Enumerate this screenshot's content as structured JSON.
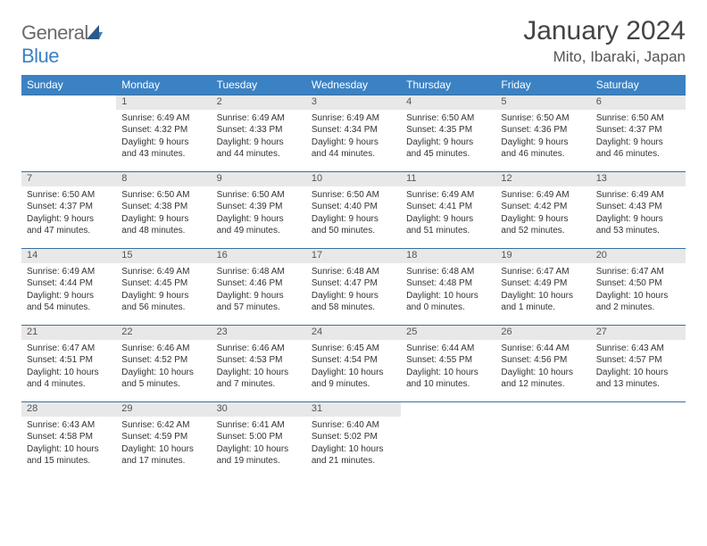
{
  "logo": {
    "text1": "General",
    "text2": "Blue"
  },
  "header": {
    "month": "January 2024",
    "location": "Mito, Ibaraki, Japan"
  },
  "colors": {
    "header_bg": "#3b82c4",
    "daynum_bg": "#e8e8e8",
    "border": "#3b6ea0",
    "text": "#333333",
    "logo_gray": "#6b6b6b",
    "logo_blue": "#3b82c4"
  },
  "dayHeaders": [
    "Sunday",
    "Monday",
    "Tuesday",
    "Wednesday",
    "Thursday",
    "Friday",
    "Saturday"
  ],
  "weeks": [
    {
      "nums": [
        "",
        "1",
        "2",
        "3",
        "4",
        "5",
        "6"
      ],
      "cells": [
        null,
        {
          "sr": "Sunrise: 6:49 AM",
          "ss": "Sunset: 4:32 PM",
          "d1": "Daylight: 9 hours",
          "d2": "and 43 minutes."
        },
        {
          "sr": "Sunrise: 6:49 AM",
          "ss": "Sunset: 4:33 PM",
          "d1": "Daylight: 9 hours",
          "d2": "and 44 minutes."
        },
        {
          "sr": "Sunrise: 6:49 AM",
          "ss": "Sunset: 4:34 PM",
          "d1": "Daylight: 9 hours",
          "d2": "and 44 minutes."
        },
        {
          "sr": "Sunrise: 6:50 AM",
          "ss": "Sunset: 4:35 PM",
          "d1": "Daylight: 9 hours",
          "d2": "and 45 minutes."
        },
        {
          "sr": "Sunrise: 6:50 AM",
          "ss": "Sunset: 4:36 PM",
          "d1": "Daylight: 9 hours",
          "d2": "and 46 minutes."
        },
        {
          "sr": "Sunrise: 6:50 AM",
          "ss": "Sunset: 4:37 PM",
          "d1": "Daylight: 9 hours",
          "d2": "and 46 minutes."
        }
      ]
    },
    {
      "nums": [
        "7",
        "8",
        "9",
        "10",
        "11",
        "12",
        "13"
      ],
      "cells": [
        {
          "sr": "Sunrise: 6:50 AM",
          "ss": "Sunset: 4:37 PM",
          "d1": "Daylight: 9 hours",
          "d2": "and 47 minutes."
        },
        {
          "sr": "Sunrise: 6:50 AM",
          "ss": "Sunset: 4:38 PM",
          "d1": "Daylight: 9 hours",
          "d2": "and 48 minutes."
        },
        {
          "sr": "Sunrise: 6:50 AM",
          "ss": "Sunset: 4:39 PM",
          "d1": "Daylight: 9 hours",
          "d2": "and 49 minutes."
        },
        {
          "sr": "Sunrise: 6:50 AM",
          "ss": "Sunset: 4:40 PM",
          "d1": "Daylight: 9 hours",
          "d2": "and 50 minutes."
        },
        {
          "sr": "Sunrise: 6:49 AM",
          "ss": "Sunset: 4:41 PM",
          "d1": "Daylight: 9 hours",
          "d2": "and 51 minutes."
        },
        {
          "sr": "Sunrise: 6:49 AM",
          "ss": "Sunset: 4:42 PM",
          "d1": "Daylight: 9 hours",
          "d2": "and 52 minutes."
        },
        {
          "sr": "Sunrise: 6:49 AM",
          "ss": "Sunset: 4:43 PM",
          "d1": "Daylight: 9 hours",
          "d2": "and 53 minutes."
        }
      ]
    },
    {
      "nums": [
        "14",
        "15",
        "16",
        "17",
        "18",
        "19",
        "20"
      ],
      "cells": [
        {
          "sr": "Sunrise: 6:49 AM",
          "ss": "Sunset: 4:44 PM",
          "d1": "Daylight: 9 hours",
          "d2": "and 54 minutes."
        },
        {
          "sr": "Sunrise: 6:49 AM",
          "ss": "Sunset: 4:45 PM",
          "d1": "Daylight: 9 hours",
          "d2": "and 56 minutes."
        },
        {
          "sr": "Sunrise: 6:48 AM",
          "ss": "Sunset: 4:46 PM",
          "d1": "Daylight: 9 hours",
          "d2": "and 57 minutes."
        },
        {
          "sr": "Sunrise: 6:48 AM",
          "ss": "Sunset: 4:47 PM",
          "d1": "Daylight: 9 hours",
          "d2": "and 58 minutes."
        },
        {
          "sr": "Sunrise: 6:48 AM",
          "ss": "Sunset: 4:48 PM",
          "d1": "Daylight: 10 hours",
          "d2": "and 0 minutes."
        },
        {
          "sr": "Sunrise: 6:47 AM",
          "ss": "Sunset: 4:49 PM",
          "d1": "Daylight: 10 hours",
          "d2": "and 1 minute."
        },
        {
          "sr": "Sunrise: 6:47 AM",
          "ss": "Sunset: 4:50 PM",
          "d1": "Daylight: 10 hours",
          "d2": "and 2 minutes."
        }
      ]
    },
    {
      "nums": [
        "21",
        "22",
        "23",
        "24",
        "25",
        "26",
        "27"
      ],
      "cells": [
        {
          "sr": "Sunrise: 6:47 AM",
          "ss": "Sunset: 4:51 PM",
          "d1": "Daylight: 10 hours",
          "d2": "and 4 minutes."
        },
        {
          "sr": "Sunrise: 6:46 AM",
          "ss": "Sunset: 4:52 PM",
          "d1": "Daylight: 10 hours",
          "d2": "and 5 minutes."
        },
        {
          "sr": "Sunrise: 6:46 AM",
          "ss": "Sunset: 4:53 PM",
          "d1": "Daylight: 10 hours",
          "d2": "and 7 minutes."
        },
        {
          "sr": "Sunrise: 6:45 AM",
          "ss": "Sunset: 4:54 PM",
          "d1": "Daylight: 10 hours",
          "d2": "and 9 minutes."
        },
        {
          "sr": "Sunrise: 6:44 AM",
          "ss": "Sunset: 4:55 PM",
          "d1": "Daylight: 10 hours",
          "d2": "and 10 minutes."
        },
        {
          "sr": "Sunrise: 6:44 AM",
          "ss": "Sunset: 4:56 PM",
          "d1": "Daylight: 10 hours",
          "d2": "and 12 minutes."
        },
        {
          "sr": "Sunrise: 6:43 AM",
          "ss": "Sunset: 4:57 PM",
          "d1": "Daylight: 10 hours",
          "d2": "and 13 minutes."
        }
      ]
    },
    {
      "nums": [
        "28",
        "29",
        "30",
        "31",
        "",
        "",
        ""
      ],
      "cells": [
        {
          "sr": "Sunrise: 6:43 AM",
          "ss": "Sunset: 4:58 PM",
          "d1": "Daylight: 10 hours",
          "d2": "and 15 minutes."
        },
        {
          "sr": "Sunrise: 6:42 AM",
          "ss": "Sunset: 4:59 PM",
          "d1": "Daylight: 10 hours",
          "d2": "and 17 minutes."
        },
        {
          "sr": "Sunrise: 6:41 AM",
          "ss": "Sunset: 5:00 PM",
          "d1": "Daylight: 10 hours",
          "d2": "and 19 minutes."
        },
        {
          "sr": "Sunrise: 6:40 AM",
          "ss": "Sunset: 5:02 PM",
          "d1": "Daylight: 10 hours",
          "d2": "and 21 minutes."
        },
        null,
        null,
        null
      ]
    }
  ]
}
